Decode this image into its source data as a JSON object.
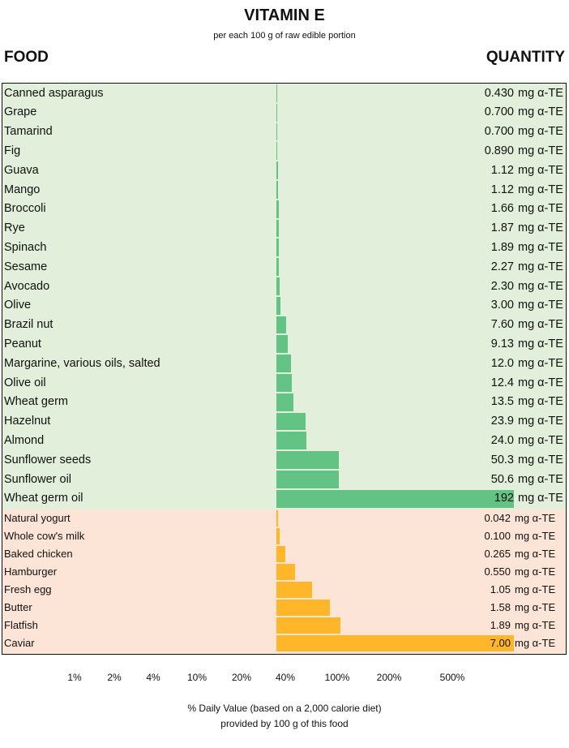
{
  "header": {
    "title": "VITAMIN E",
    "subtitle": "per each 100 g of raw edible portion",
    "food_label": "FOOD",
    "quantity_label": "QUANTITY"
  },
  "colors": {
    "plant_bg": "#e2efda",
    "plant_bar": "#63c384",
    "animal_bg": "#fce4d6",
    "animal_bar": "#ffb628"
  },
  "chart_data": {
    "type": "bar",
    "title": "VITAMIN E",
    "unit": "mg α-TE",
    "groups": [
      {
        "name": "plant",
        "max": 192,
        "items": [
          {
            "food": "Canned asparagus",
            "value": 0.43,
            "label": "0.430"
          },
          {
            "food": "Grape",
            "value": 0.7,
            "label": "0.700"
          },
          {
            "food": "Tamarind",
            "value": 0.7,
            "label": "0.700"
          },
          {
            "food": "Fig",
            "value": 0.89,
            "label": "0.890"
          },
          {
            "food": "Guava",
            "value": 1.12,
            "label": "1.12"
          },
          {
            "food": "Mango",
            "value": 1.12,
            "label": "1.12"
          },
          {
            "food": "Broccoli",
            "value": 1.66,
            "label": "1.66"
          },
          {
            "food": "Rye",
            "value": 1.87,
            "label": "1.87"
          },
          {
            "food": "Spinach",
            "value": 1.89,
            "label": "1.89"
          },
          {
            "food": "Sesame",
            "value": 2.27,
            "label": "2.27"
          },
          {
            "food": "Avocado",
            "value": 2.3,
            "label": "2.30"
          },
          {
            "food": "Olive",
            "value": 3.0,
            "label": "3.00"
          },
          {
            "food": "Brazil nut",
            "value": 7.6,
            "label": "7.60"
          },
          {
            "food": "Peanut",
            "value": 9.13,
            "label": "9.13"
          },
          {
            "food": "Margarine, various oils, salted",
            "value": 12.0,
            "label": "12.0"
          },
          {
            "food": "Olive oil",
            "value": 12.4,
            "label": "12.4"
          },
          {
            "food": "Wheat germ",
            "value": 13.5,
            "label": "13.5"
          },
          {
            "food": "Hazelnut",
            "value": 23.9,
            "label": "23.9"
          },
          {
            "food": "Almond",
            "value": 24.0,
            "label": "24.0"
          },
          {
            "food": "Sunflower seeds",
            "value": 50.3,
            "label": "50.3"
          },
          {
            "food": "Sunflower oil",
            "value": 50.6,
            "label": "50.6"
          },
          {
            "food": "Wheat germ oil",
            "value": 192,
            "label": "192"
          }
        ]
      },
      {
        "name": "animal",
        "max": 7.0,
        "items": [
          {
            "food": "Natural yogurt",
            "value": 0.042,
            "label": "0.042"
          },
          {
            "food": "Whole cow's milk",
            "value": 0.1,
            "label": "0.100"
          },
          {
            "food": "Baked chicken",
            "value": 0.265,
            "label": "0.265"
          },
          {
            "food": "Hamburger",
            "value": 0.55,
            "label": "0.550"
          },
          {
            "food": "Fresh egg",
            "value": 1.05,
            "label": "1.05"
          },
          {
            "food": "Butter",
            "value": 1.58,
            "label": "1.58"
          },
          {
            "food": "Flatfish",
            "value": 1.89,
            "label": "1.89"
          },
          {
            "food": "Caviar",
            "value": 7.0,
            "label": "7.00"
          }
        ]
      }
    ],
    "x_ticks": [
      "1%",
      "2%",
      "4%",
      "10%",
      "20%",
      "40%",
      "100%",
      "200%",
      "500%"
    ],
    "xlabel": [
      "% Daily Value (based on a 2,000 calorie diet)",
      "provided by 100 g of this food"
    ]
  }
}
